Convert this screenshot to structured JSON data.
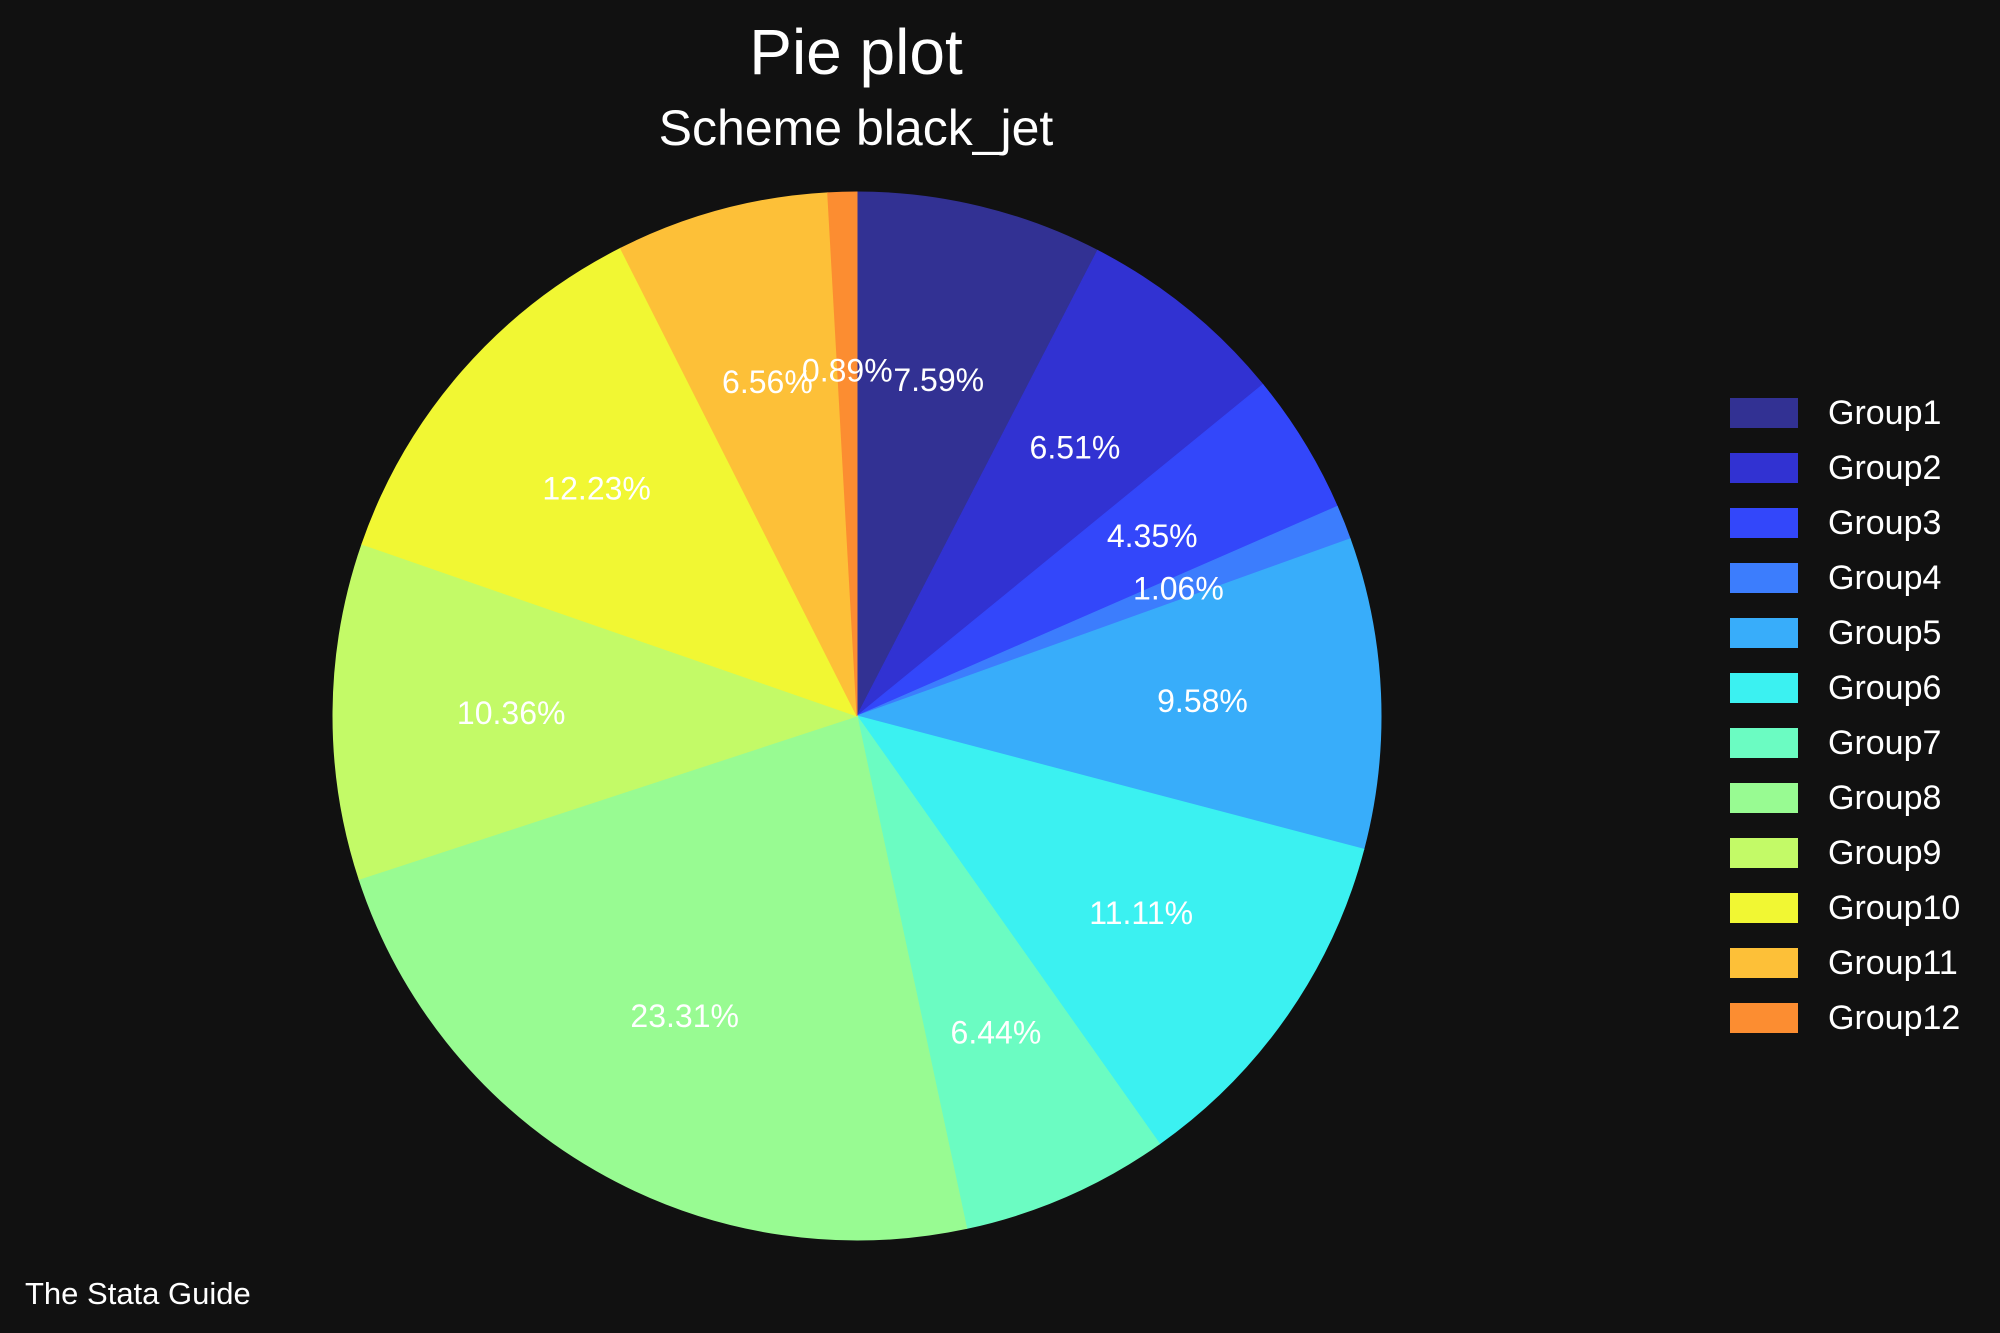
{
  "watermark": "The Stata Guide",
  "background_color": "#111111",
  "text_color": "#ffffff",
  "chart_data": {
    "type": "pie",
    "title": "Pie plot",
    "subtitle": "Scheme black_jet",
    "start_angle_deg": 0,
    "direction": "clockwise",
    "label_format": "percent",
    "legend_position": "right",
    "slices": [
      {
        "label": "Group1",
        "value_pct": 7.59,
        "display": "7.59%",
        "color": "#323193"
      },
      {
        "label": "Group2",
        "value_pct": 6.51,
        "display": "6.51%",
        "color": "#3132d2"
      },
      {
        "label": "Group3",
        "value_pct": 4.35,
        "display": "4.35%",
        "color": "#3347fa"
      },
      {
        "label": "Group4",
        "value_pct": 1.06,
        "display": "1.06%",
        "color": "#3c7dfd"
      },
      {
        "label": "Group5",
        "value_pct": 9.58,
        "display": "9.58%",
        "color": "#38adfa"
      },
      {
        "label": "Group6",
        "value_pct": 11.11,
        "display": "11.11%",
        "color": "#3bf1f1"
      },
      {
        "label": "Group7",
        "value_pct": 6.44,
        "display": "6.44%",
        "color": "#6bfcc2"
      },
      {
        "label": "Group8",
        "value_pct": 23.31,
        "display": "23.31%",
        "color": "#98fb92"
      },
      {
        "label": "Group9",
        "value_pct": 10.36,
        "display": "10.36%",
        "color": "#c3fa67"
      },
      {
        "label": "Group10",
        "value_pct": 12.23,
        "display": "12.23%",
        "color": "#f1f733"
      },
      {
        "label": "Group11",
        "value_pct": 6.56,
        "display": "6.56%",
        "color": "#fdc038"
      },
      {
        "label": "Group12",
        "value_pct": 0.89,
        "display": "0.89%",
        "color": "#fc8d31"
      }
    ]
  }
}
